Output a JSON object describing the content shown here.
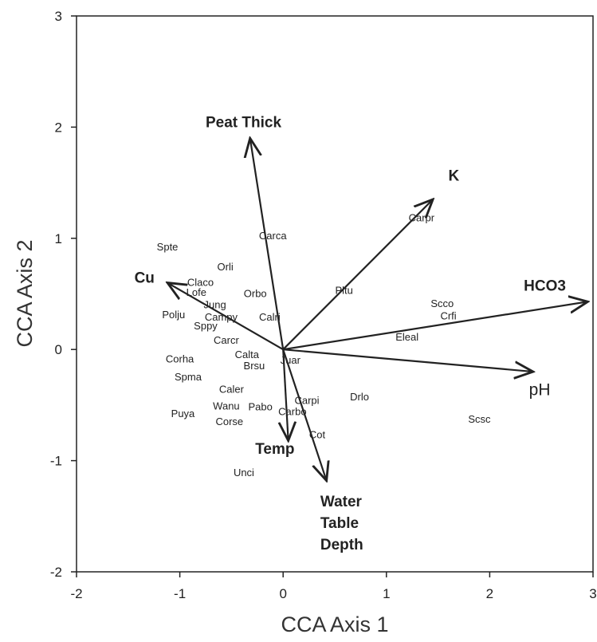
{
  "chart_data": {
    "type": "scatter",
    "title": "",
    "xlabel": "CCA Axis 1",
    "ylabel": "CCA Axis 2",
    "xlim": [
      -2,
      3
    ],
    "ylim": [
      -2,
      3
    ],
    "xticks": [
      -2,
      -1,
      0,
      1,
      2,
      3
    ],
    "yticks": [
      -2,
      -1,
      0,
      1,
      2,
      3
    ],
    "grid": false,
    "species": [
      {
        "label": "Spte",
        "x": -1.12,
        "y": 0.92
      },
      {
        "label": "Carca",
        "x": -0.1,
        "y": 1.02
      },
      {
        "label": "Orli",
        "x": -0.56,
        "y": 0.74
      },
      {
        "label": "Claco",
        "x": -0.8,
        "y": 0.6
      },
      {
        "label": "Lofe",
        "x": -0.84,
        "y": 0.51
      },
      {
        "label": "Orbo",
        "x": -0.27,
        "y": 0.5
      },
      {
        "label": "Jung",
        "x": -0.66,
        "y": 0.4
      },
      {
        "label": "Campy",
        "x": -0.6,
        "y": 0.29
      },
      {
        "label": "Calri",
        "x": -0.13,
        "y": 0.29
      },
      {
        "label": "Polju",
        "x": -1.06,
        "y": 0.31
      },
      {
        "label": "Sppy",
        "x": -0.75,
        "y": 0.21
      },
      {
        "label": "Carcr",
        "x": -0.55,
        "y": 0.08
      },
      {
        "label": "Pltu",
        "x": 0.59,
        "y": 0.53
      },
      {
        "label": "Carpr",
        "x": 1.34,
        "y": 1.18
      },
      {
        "label": "Scco",
        "x": 1.54,
        "y": 0.41
      },
      {
        "label": "Crfi",
        "x": 1.6,
        "y": 0.3
      },
      {
        "label": "Eleal",
        "x": 1.2,
        "y": 0.11
      },
      {
        "label": "Corha",
        "x": -1.0,
        "y": -0.09
      },
      {
        "label": "Calta",
        "x": -0.35,
        "y": -0.05
      },
      {
        "label": "Brsu",
        "x": -0.28,
        "y": -0.15
      },
      {
        "label": "Juar",
        "x": 0.07,
        "y": -0.1
      },
      {
        "label": "Spma",
        "x": -0.92,
        "y": -0.25
      },
      {
        "label": "Caler",
        "x": -0.5,
        "y": -0.36
      },
      {
        "label": "Carpi",
        "x": 0.23,
        "y": -0.46
      },
      {
        "label": "Drlo",
        "x": 0.74,
        "y": -0.43
      },
      {
        "label": "Wanu",
        "x": -0.55,
        "y": -0.51
      },
      {
        "label": "Pabo",
        "x": -0.22,
        "y": -0.52
      },
      {
        "label": "Carbo",
        "x": 0.09,
        "y": -0.56
      },
      {
        "label": "Puya",
        "x": -0.97,
        "y": -0.58
      },
      {
        "label": "Corse",
        "x": -0.52,
        "y": -0.65
      },
      {
        "label": "Scsc",
        "x": 1.9,
        "y": -0.63
      },
      {
        "label": "Cot",
        "x": 0.33,
        "y": -0.77
      },
      {
        "label": "Unci",
        "x": -0.38,
        "y": -1.11
      }
    ],
    "env_vectors": [
      {
        "lines": [
          "Peat Thick"
        ],
        "x": -0.32,
        "y": 1.9,
        "lx": -0.75,
        "ly": 2.0,
        "anchor": "start",
        "style": "bold"
      },
      {
        "lines": [
          "K"
        ],
        "x": 1.45,
        "y": 1.35,
        "lx": 1.6,
        "ly": 1.52,
        "anchor": "start",
        "style": "bold"
      },
      {
        "lines": [
          "HCO3"
        ],
        "x": 2.95,
        "y": 0.43,
        "lx": 2.33,
        "ly": 0.53,
        "anchor": "start",
        "style": "bold"
      },
      {
        "lines": [
          "pH"
        ],
        "x": 2.42,
        "y": -0.2,
        "lx": 2.38,
        "ly": -0.41,
        "anchor": "start",
        "style": "normal"
      },
      {
        "lines": [
          "Cu"
        ],
        "x": -1.12,
        "y": 0.6,
        "lx": -1.44,
        "ly": 0.6,
        "anchor": "start",
        "style": "bold"
      },
      {
        "lines": [
          "Temp"
        ],
        "x": 0.05,
        "y": -0.82,
        "lx": -0.27,
        "ly": -0.94,
        "anchor": "start",
        "style": "bold"
      },
      {
        "lines": [
          "Water",
          "Table",
          "Depth"
        ],
        "x": 0.42,
        "y": -1.18,
        "lx": 0.36,
        "ly": -1.41,
        "anchor": "start",
        "style": "bold"
      }
    ]
  }
}
